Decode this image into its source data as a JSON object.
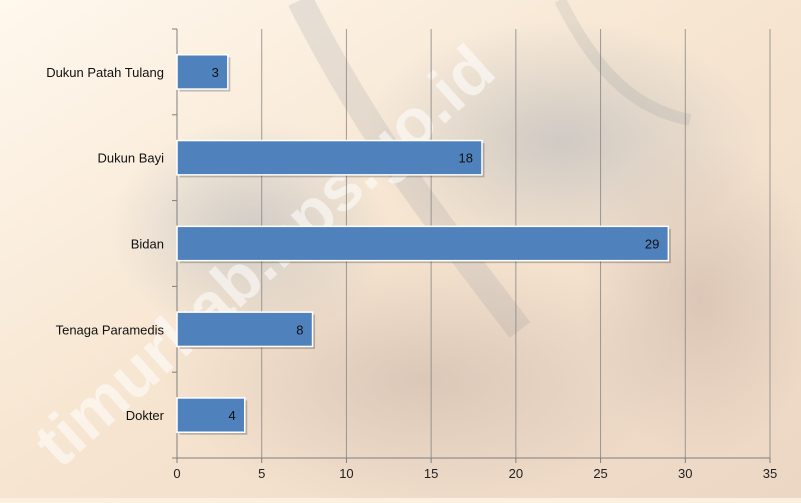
{
  "background_colors": [
    "#fff6ea",
    "#f5e0c8",
    "#e8d2c0"
  ],
  "watermark": "timurkab.bps.go.id",
  "chart_data": {
    "type": "bar",
    "orientation": "horizontal",
    "categories": [
      "Dukun Patah Tulang",
      "Dukun Bayi",
      "Bidan",
      "Tenaga Paramedis",
      "Dokter"
    ],
    "values": [
      3,
      18,
      29,
      8,
      4
    ],
    "xlim": [
      0,
      35
    ],
    "xticks": [
      0,
      5,
      10,
      15,
      20,
      25,
      30,
      35
    ],
    "grid": true,
    "legend": "none",
    "bar_color": "#4f81bd",
    "bar_edge_color": "#ffffff",
    "title": "",
    "xlabel": "",
    "ylabel": ""
  }
}
